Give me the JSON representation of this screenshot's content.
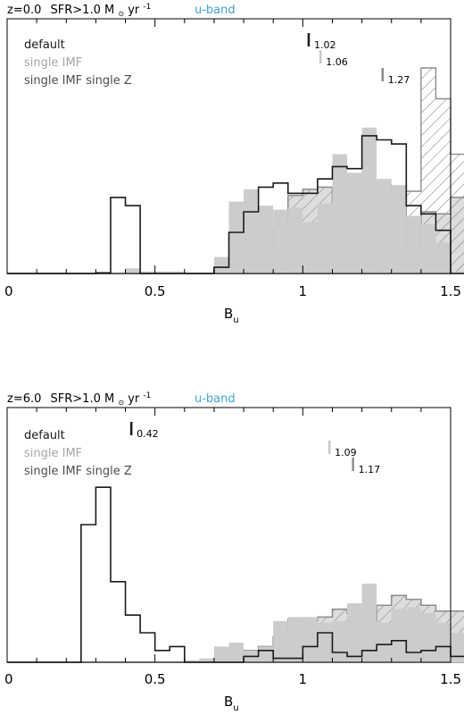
{
  "colors": {
    "default": "#1a1a1a",
    "single_imf": "#c8c8c8",
    "single_imf_single_z": "#8c8c8c",
    "band": "#3fa4d0"
  },
  "chart_data": [
    {
      "type": "histogram",
      "title_prefix": "z=0.0",
      "title_sfr": "SFR>1.0 M",
      "title_sun": "⊙",
      "title_unit": " yr",
      "title_exp": "-1",
      "band_label": "u-band",
      "xlabel_main": "B",
      "xlabel_sub": "u",
      "xlim": [
        0,
        1.5
      ],
      "ylim": [
        0,
        1
      ],
      "x_ticks": [
        0,
        0.5,
        1,
        1.5
      ],
      "x_tick_labels": [
        "0",
        "0.5",
        "1",
        "1.5"
      ],
      "bin_start": 0,
      "bin_width": 0.05,
      "legend": [
        "default",
        "single IMF",
        "single IMF single Z"
      ],
      "medians": [
        {
          "series": "default",
          "value": 1.02,
          "label": "1.02"
        },
        {
          "series": "single IMF",
          "value": 1.06,
          "label": "1.06"
        },
        {
          "series": "single IMF single Z",
          "value": 1.27,
          "label": "1.27"
        }
      ],
      "series": [
        {
          "name": "default",
          "style": "step",
          "values": [
            0,
            0,
            0,
            0,
            0,
            0,
            0.003,
            0.37,
            0.33,
            0,
            0,
            0,
            0,
            0,
            0.03,
            0.2,
            0.3,
            0.42,
            0.44,
            0.39,
            0.39,
            0.46,
            0.52,
            0.51,
            0.67,
            0.65,
            0.63,
            0.33,
            0.29,
            0.21,
            0,
            0,
            0
          ]
        },
        {
          "name": "single IMF",
          "style": "filled",
          "values": [
            0,
            0,
            0,
            0,
            0,
            0,
            0.005,
            0.005,
            0.025,
            0.01,
            0.01,
            0.01,
            0,
            0,
            0.08,
            0.35,
            0.41,
            0.33,
            0.31,
            0.32,
            0.25,
            0.34,
            0.58,
            0.49,
            0.71,
            0.46,
            0.43,
            0.28,
            0.24,
            0.15,
            0.01,
            0,
            0
          ]
        },
        {
          "name": "single IMF single Z",
          "style": "hatched",
          "values": [
            0,
            0,
            0,
            0,
            0,
            0,
            0,
            0,
            0.004,
            0.004,
            0.004,
            0.004,
            0,
            0,
            0.03,
            0.03,
            0.05,
            0.13,
            0.22,
            0.38,
            0.41,
            0.42,
            0.35,
            0.26,
            0.44,
            0.43,
            0.39,
            0.13,
            0.3,
            0.29,
            0.37,
            0.28,
            0.1
          ]
        }
      ],
      "overlay": {
        "name": "single IMF single Z",
        "style": "hatched-outline",
        "values": [
          0,
          0,
          0,
          0,
          0,
          0,
          0,
          0,
          0,
          0,
          0,
          0,
          0,
          0,
          0,
          0,
          0,
          0,
          0,
          0,
          0,
          0,
          0,
          0,
          0,
          0,
          0,
          0.4,
          1.0,
          0.85,
          0.58,
          0.27,
          0.15
        ]
      }
    },
    {
      "type": "histogram",
      "title_prefix": "z=6.0",
      "title_sfr": "SFR>1.0 M",
      "title_sun": "⊙",
      "title_unit": " yr",
      "title_exp": "-1",
      "band_label": "u-band",
      "xlabel_main": "B",
      "xlabel_sub": "u",
      "xlim": [
        0,
        1.5
      ],
      "ylim": [
        0,
        1
      ],
      "x_ticks": [
        0,
        0.5,
        1,
        1.5
      ],
      "x_tick_labels": [
        "0",
        "0.5",
        "1",
        "1.5"
      ],
      "bin_start": 0,
      "bin_width": 0.05,
      "legend": [
        "default",
        "single IMF",
        "single IMF single Z"
      ],
      "medians": [
        {
          "series": "default",
          "value": 0.42,
          "label": "0.42"
        },
        {
          "series": "single IMF",
          "value": 1.09,
          "label": "1.09"
        },
        {
          "series": "single IMF single Z",
          "value": 1.17,
          "label": "1.17"
        }
      ],
      "series": [
        {
          "name": "default",
          "style": "step",
          "values": [
            0,
            0,
            0,
            0,
            0,
            0.7,
            0.89,
            0.41,
            0.24,
            0.15,
            0.06,
            0.08,
            0,
            0,
            0,
            0,
            0.03,
            0.06,
            0.02,
            0.02,
            0.08,
            0.15,
            0.05,
            0.03,
            0.06,
            0.09,
            0.11,
            0.05,
            0.06,
            0.08,
            0.03,
            0.04,
            0.02
          ]
        },
        {
          "name": "single IMF",
          "style": "filled",
          "values": [
            0,
            0,
            0,
            0,
            0,
            0,
            0,
            0,
            0,
            0,
            0,
            0,
            0.01,
            0.02,
            0.08,
            0.1,
            0.06,
            0.08,
            0.21,
            0.23,
            0.23,
            0.2,
            0.21,
            0.3,
            0.4,
            0.2,
            0.27,
            0.28,
            0.25,
            0.2,
            0.15,
            0.2,
            0.1
          ]
        },
        {
          "name": "single IMF single Z",
          "style": "hatched",
          "values": [
            0,
            0,
            0,
            0,
            0,
            0,
            0,
            0,
            0,
            0,
            0,
            0,
            0,
            0,
            0.02,
            0.03,
            0.06,
            0.08,
            0.13,
            0.22,
            0.21,
            0.23,
            0.27,
            0.25,
            0.21,
            0.29,
            0.34,
            0.32,
            0.29,
            0.26,
            0.26,
            0.2,
            0.12
          ]
        }
      ]
    }
  ]
}
